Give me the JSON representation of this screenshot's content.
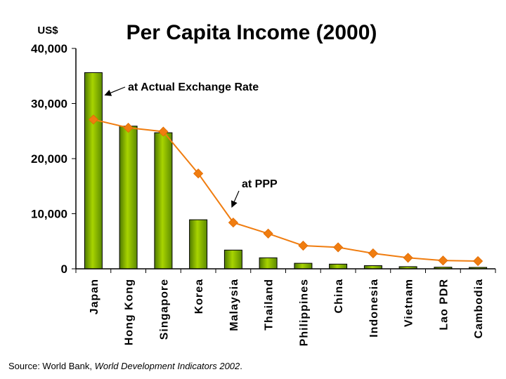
{
  "chart_data": {
    "type": "bar",
    "title": "Per Capita Income (2000)",
    "ylabel": "US$",
    "xlabel": "",
    "ylim": [
      0,
      40000
    ],
    "yticks": [
      0,
      10000,
      20000,
      30000,
      40000
    ],
    "ytick_labels": [
      "0",
      "10,000",
      "20,000",
      "30,000",
      "40,000"
    ],
    "categories": [
      "Japan",
      "Hong Kong",
      "Singapore",
      "Korea",
      "Malaysia",
      "Thailand",
      "Philippines",
      "China",
      "Indonesia",
      "Vietnam",
      "Lao PDR",
      "Cambodia"
    ],
    "series": [
      {
        "name": "at Actual Exchange Rate",
        "kind": "bar",
        "color": "#7fb000",
        "values": [
          35600,
          25900,
          24700,
          8900,
          3400,
          2000,
          1000,
          850,
          570,
          390,
          290,
          260
        ]
      },
      {
        "name": "at PPP",
        "kind": "line",
        "color": "#f07d10",
        "values": [
          27100,
          25600,
          24900,
          17300,
          8400,
          6400,
          4200,
          3900,
          2800,
          2000,
          1500,
          1400
        ]
      }
    ],
    "annotations": [
      {
        "text": "at Actual Exchange Rate",
        "target_series": 0,
        "target_index": 0
      },
      {
        "text": "at PPP",
        "target_series": 1,
        "target_index": 4
      }
    ]
  },
  "source": {
    "prefix": "Source: World Bank, ",
    "publication": "World Development Indicators 2002",
    "suffix": "."
  }
}
